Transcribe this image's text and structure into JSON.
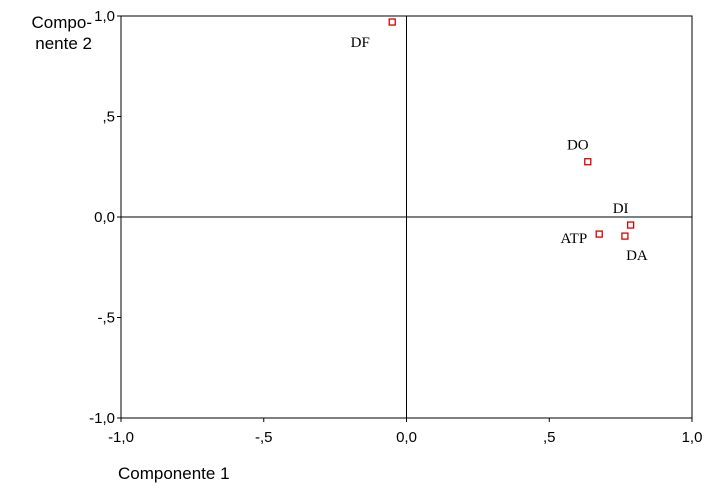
{
  "chart_data": {
    "type": "scatter",
    "xlabel": "Componente 1",
    "ylabel_line1": "Compo-",
    "ylabel_line2": "nente 2",
    "xlim": [
      -1.0,
      1.0
    ],
    "ylim": [
      -1.0,
      1.0
    ],
    "x_ticks": [
      {
        "value": -1.0,
        "label": "-1,0"
      },
      {
        "value": -0.5,
        "label": "-,5"
      },
      {
        "value": 0.0,
        "label": "0,0"
      },
      {
        "value": 0.5,
        "label": ",5"
      },
      {
        "value": 1.0,
        "label": "1,0"
      }
    ],
    "y_ticks": [
      {
        "value": 1.0,
        "label": "1,0"
      },
      {
        "value": 0.5,
        "label": ",5"
      },
      {
        "value": 0.0,
        "label": "0,0"
      },
      {
        "value": -0.5,
        "label": "-,5"
      },
      {
        "value": -1.0,
        "label": "-1,0"
      }
    ],
    "points": [
      {
        "label": "DF",
        "x": -0.05,
        "y": 0.97,
        "label_pos": "below-left"
      },
      {
        "label": "DO",
        "x": 0.635,
        "y": 0.275,
        "label_pos": "above-left"
      },
      {
        "label": "DI",
        "x": 0.785,
        "y": -0.04,
        "label_pos": "above"
      },
      {
        "label": "ATP",
        "x": 0.675,
        "y": -0.085,
        "label_pos": "left"
      },
      {
        "label": "DA",
        "x": 0.765,
        "y": -0.095,
        "label_pos": "below-right"
      }
    ],
    "marker_color": "#d40000",
    "grid": false,
    "reference_lines": [
      0,
      0
    ]
  }
}
